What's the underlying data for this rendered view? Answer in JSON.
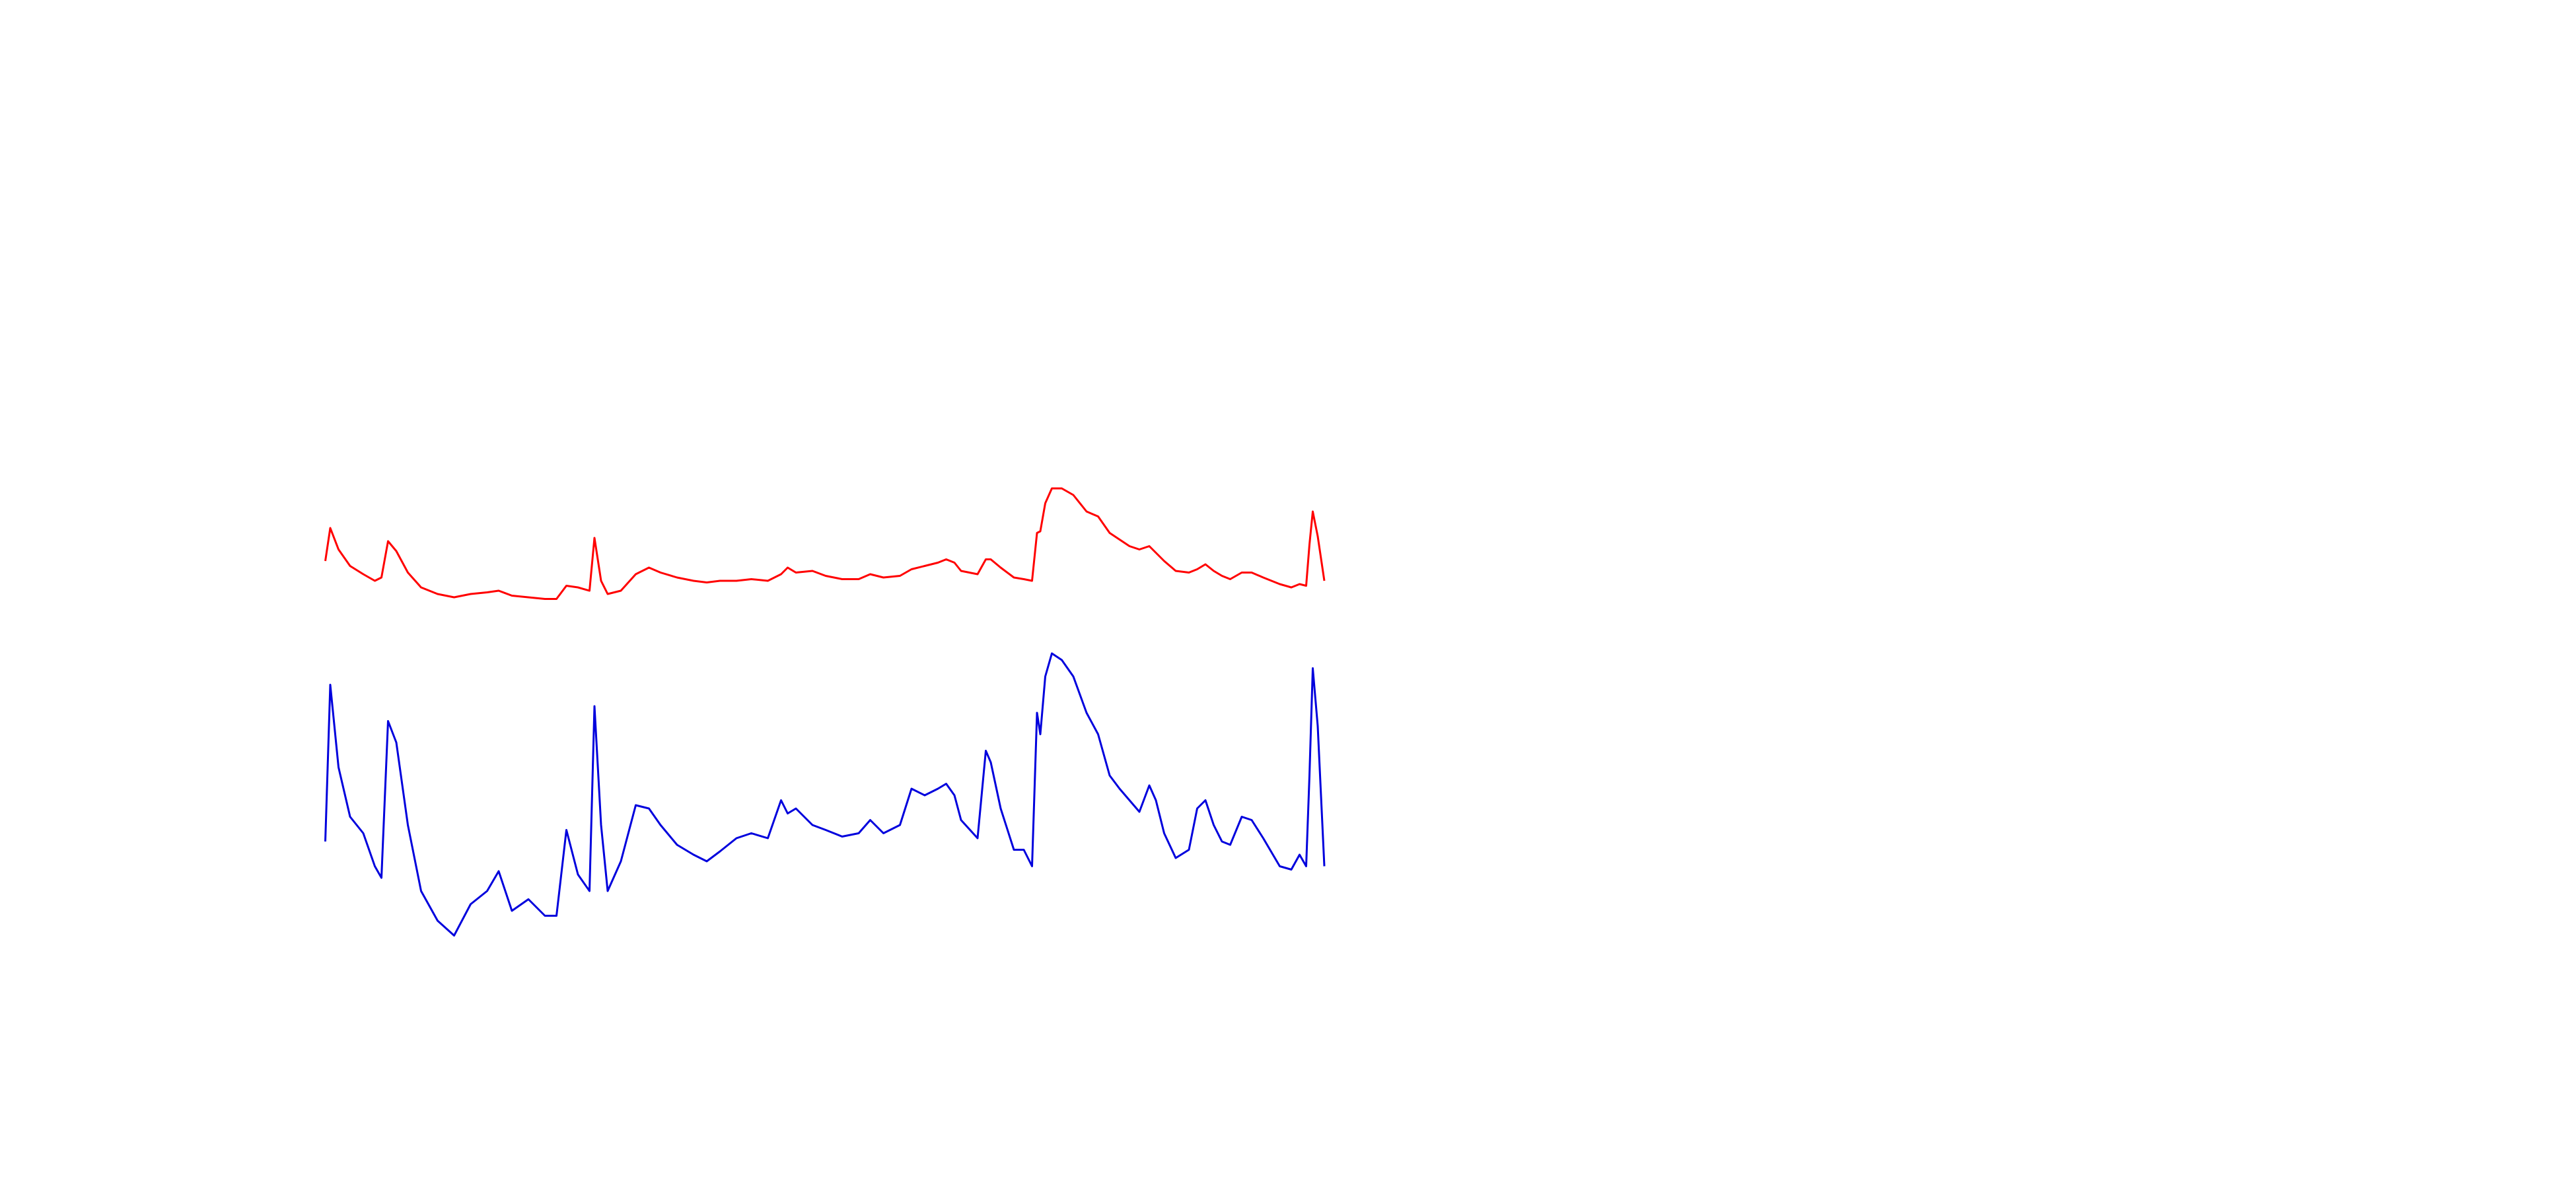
{
  "chart_data": {
    "type": "line",
    "x": [
      0,
      3,
      8,
      15,
      23,
      30,
      34,
      38,
      43,
      50,
      58,
      68,
      78,
      88,
      98,
      105,
      113,
      123,
      133,
      140,
      146,
      153,
      160,
      163,
      167,
      171,
      179,
      188,
      196,
      203,
      213,
      223,
      231,
      239,
      249,
      258,
      268,
      276,
      280,
      285,
      295,
      303,
      313,
      323,
      330,
      338,
      348,
      355,
      363,
      371,
      376,
      381,
      385,
      395,
      400,
      403,
      409,
      417,
      423,
      428,
      431,
      433,
      436,
      440,
      446,
      453,
      461,
      468,
      475,
      481,
      487,
      493,
      499,
      503,
      508,
      515,
      523,
      528,
      533,
      538,
      543,
      548,
      555,
      561,
      568,
      578,
      585,
      590,
      594,
      596,
      598,
      601,
      605
    ],
    "xlim": [
      0,
      605
    ],
    "ylim": [
      0,
      720
    ],
    "series": [
      {
        "color": "#ff0000",
        "values": [
          380,
          400,
          387,
          377,
          372,
          368,
          370,
          392,
          386,
          373,
          364,
          360,
          358,
          360,
          361,
          362,
          359,
          358,
          357,
          357,
          365,
          364,
          362,
          394,
          368,
          360,
          362,
          372,
          376,
          373,
          370,
          368,
          367,
          368,
          368,
          369,
          368,
          372,
          376,
          373,
          374,
          371,
          369,
          369,
          372,
          370,
          371,
          375,
          377,
          379,
          381,
          379,
          374,
          372,
          381,
          381,
          376,
          370,
          369,
          368,
          397,
          398,
          415,
          424,
          424,
          420,
          410,
          407,
          397,
          393,
          389,
          387,
          389,
          385,
          380,
          374,
          373,
          375,
          378,
          374,
          371,
          369,
          373,
          373,
          370,
          366,
          364,
          366,
          365,
          390,
          410,
          395,
          368
        ]
      },
      {
        "color": "#0000dd",
        "values": [
          210,
          305,
          255,
          225,
          215,
          195,
          188,
          283,
          270,
          220,
          180,
          162,
          153,
          172,
          180,
          192,
          168,
          175,
          165,
          165,
          217,
          190,
          180,
          292,
          220,
          180,
          198,
          232,
          230,
          220,
          208,
          202,
          198,
          204,
          212,
          215,
          212,
          235,
          227,
          230,
          220,
          217,
          213,
          215,
          223,
          215,
          220,
          242,
          238,
          242,
          245,
          238,
          223,
          212,
          265,
          258,
          230,
          205,
          205,
          195,
          288,
          275,
          310,
          324,
          320,
          310,
          288,
          275,
          250,
          242,
          235,
          228,
          244,
          235,
          215,
          200,
          205,
          230,
          235,
          220,
          210,
          208,
          225,
          223,
          212,
          195,
          193,
          202,
          195,
          250,
          315,
          280,
          195
        ]
      }
    ]
  }
}
